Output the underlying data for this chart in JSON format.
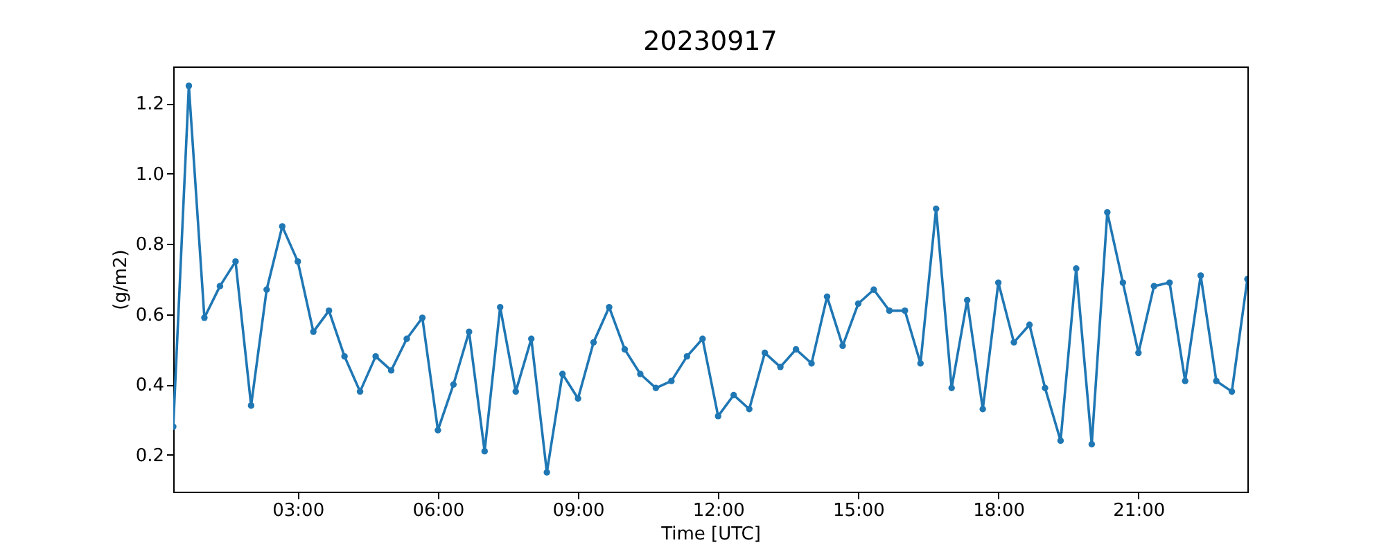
{
  "chart_data": {
    "type": "line",
    "title": "20230917",
    "xlabel": "Time [UTC]",
    "ylabel": "(g/m2)",
    "x": [
      0.333,
      0.667,
      1,
      1.333,
      1.667,
      2,
      2.333,
      2.667,
      3,
      3.333,
      3.667,
      4,
      4.333,
      4.667,
      5,
      5.333,
      5.667,
      6,
      6.333,
      6.667,
      7,
      7.333,
      7.667,
      8,
      8.333,
      8.667,
      9,
      9.333,
      9.667,
      10,
      10.333,
      10.667,
      11,
      11.333,
      11.667,
      12,
      12.333,
      12.667,
      13,
      13.333,
      13.667,
      14,
      14.333,
      14.667,
      15,
      15.333,
      15.667,
      16,
      16.333,
      16.667,
      17,
      17.333,
      17.667,
      18,
      18.333,
      18.667,
      19,
      19.333,
      19.667,
      20,
      20.333,
      20.667,
      21,
      21.333,
      21.667,
      22,
      22.333,
      22.667,
      23,
      23.333
    ],
    "series": [
      {
        "color": "#1f77b4",
        "values": [
          0.28,
          1.25,
          0.59,
          0.68,
          0.75,
          0.34,
          0.67,
          0.85,
          0.75,
          0.55,
          0.61,
          0.48,
          0.38,
          0.48,
          0.44,
          0.53,
          0.59,
          0.27,
          0.4,
          0.55,
          0.21,
          0.62,
          0.38,
          0.53,
          0.15,
          0.43,
          0.36,
          0.52,
          0.62,
          0.5,
          0.43,
          0.39,
          0.41,
          0.48,
          0.53,
          0.31,
          0.37,
          0.33,
          0.49,
          0.45,
          0.5,
          0.46,
          0.65,
          0.51,
          0.63,
          0.67,
          0.61,
          0.61,
          0.46,
          0.9,
          0.39,
          0.64,
          0.33,
          0.69,
          0.52,
          0.57,
          0.39,
          0.24,
          0.73,
          0.23,
          0.89,
          0.69,
          0.49,
          0.68,
          0.69,
          0.41,
          0.71,
          0.41,
          0.38,
          0.7
        ]
      }
    ],
    "xlim": [
      0.333,
      23.333
    ],
    "xticks": [
      {
        "value": 3,
        "label": "03:00"
      },
      {
        "value": 6,
        "label": "06:00"
      },
      {
        "value": 9,
        "label": "09:00"
      },
      {
        "value": 12,
        "label": "12:00"
      },
      {
        "value": 15,
        "label": "15:00"
      },
      {
        "value": 18,
        "label": "18:00"
      },
      {
        "value": 21,
        "label": "21:00"
      }
    ],
    "ylim": [
      0.095,
      1.305
    ],
    "yticks": [
      0.2,
      0.4,
      0.6,
      0.8,
      {
        "value": 1.0,
        "label": "1.0"
      },
      1.2
    ],
    "grid": false,
    "marker": "circle",
    "line_style": "solid"
  }
}
